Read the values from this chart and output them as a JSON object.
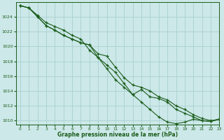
{
  "title": "Graphe pression niveau de la mer (hPa)",
  "background_color": "#cce8e8",
  "grid_color": "#aacfcf",
  "line_color": "#1a5c1a",
  "xlim": [
    -0.5,
    23
  ],
  "ylim": [
    1009.5,
    1026.0
  ],
  "yticks": [
    1010,
    1012,
    1014,
    1016,
    1018,
    1020,
    1022,
    1024
  ],
  "xticks": [
    0,
    1,
    2,
    3,
    4,
    5,
    6,
    7,
    8,
    9,
    10,
    11,
    12,
    13,
    14,
    15,
    16,
    17,
    18,
    19,
    20,
    21,
    22,
    23
  ],
  "series": [
    [
      1025.5,
      1025.2,
      1024.2,
      1023.2,
      1022.7,
      1022.2,
      1021.5,
      1021.0,
      1019.5,
      1018.5,
      1017.5,
      1016.5,
      1015.0,
      1013.5,
      1014.2,
      1013.2,
      1013.0,
      1012.5,
      1011.5,
      1011.0,
      1010.5,
      1010.0,
      1009.9,
      1010.2
    ],
    [
      1025.5,
      1025.2,
      1024.0,
      1022.8,
      1022.2,
      1021.5,
      1021.0,
      1020.5,
      1020.2,
      1019.0,
      1018.7,
      1017.2,
      1015.8,
      1014.8,
      1014.5,
      1014.0,
      1013.2,
      1012.8,
      1012.0,
      1011.5,
      1010.8,
      1010.3,
      1010.0,
      1010.2
    ],
    [
      1025.5,
      1025.2,
      1024.0,
      1022.8,
      1022.2,
      1021.5,
      1021.0,
      1020.5,
      1020.2,
      1018.5,
      1017.0,
      1015.5,
      1014.5,
      1013.5,
      1012.5,
      1011.5,
      1010.5,
      1009.8,
      1009.6,
      1009.8,
      1010.2,
      1010.0,
      1009.9,
      1010.2
    ]
  ]
}
